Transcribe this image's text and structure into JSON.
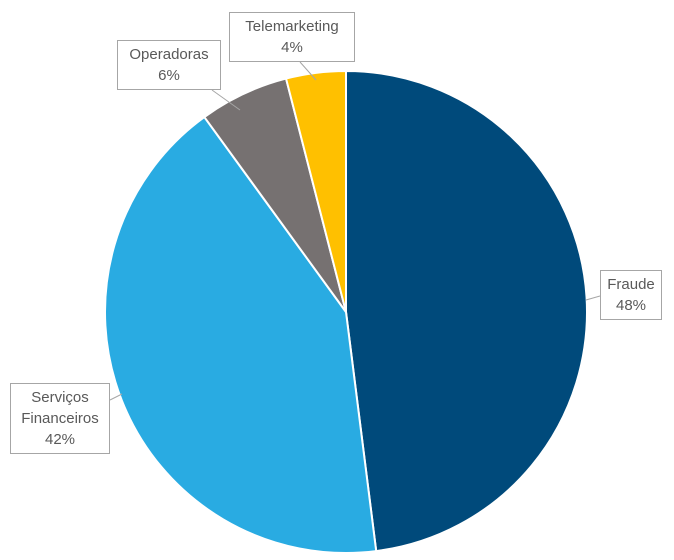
{
  "chart_data": {
    "type": "pie",
    "categories": [
      "Fraude",
      "Serviços Financeiros",
      "Operadoras",
      "Telemarketing"
    ],
    "values": [
      48,
      42,
      6,
      4
    ],
    "value_labels": [
      "48%",
      "42%",
      "6%",
      "4%"
    ],
    "colors": [
      "#004a7b",
      "#29abe2",
      "#767171",
      "#ffc000"
    ]
  }
}
